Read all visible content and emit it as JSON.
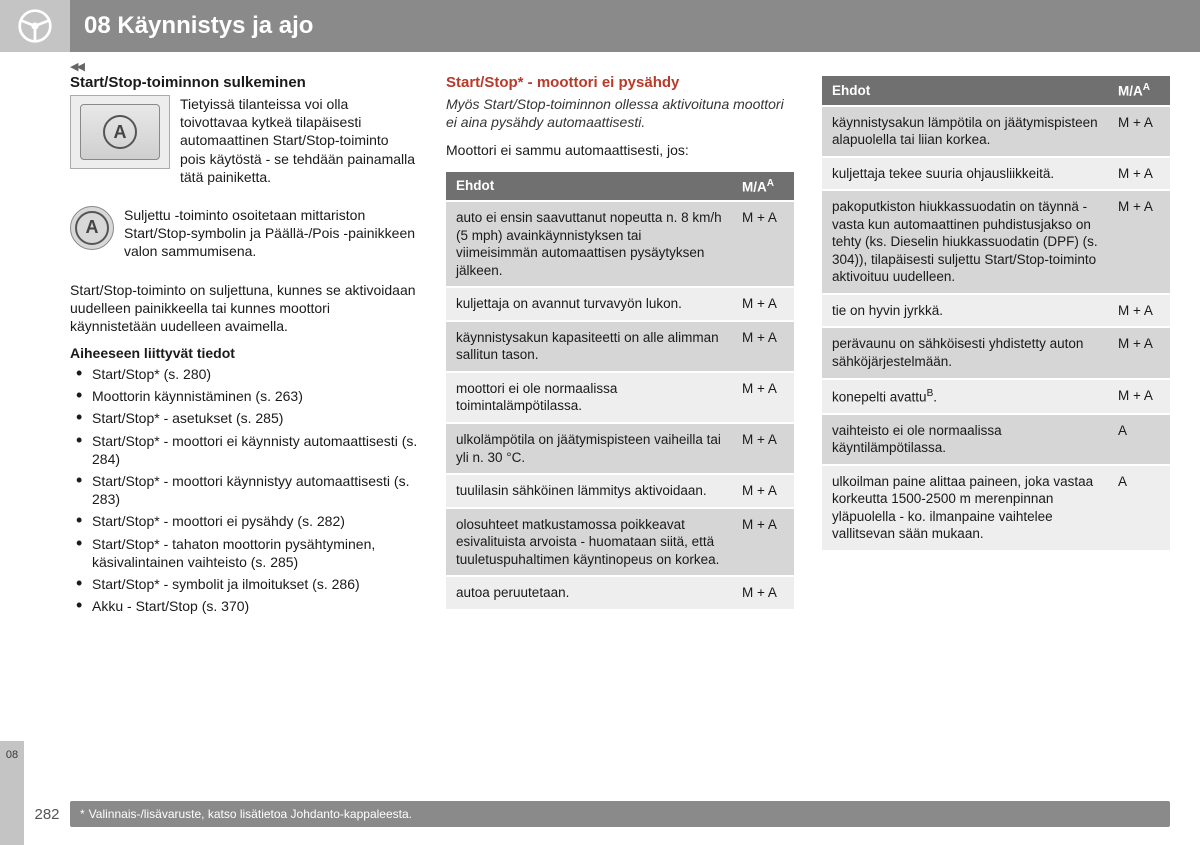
{
  "header": {
    "chapter_num": "08",
    "chapter_title": "Käynnistys ja ajo"
  },
  "side_tab": "08",
  "page_number": "282",
  "footnote": "Valinnais-/lisävaruste, katso lisätietoa Johdanto-kappaleesta.",
  "col1": {
    "h1": "Start/Stop-toiminnon sulkeminen",
    "p1": "Tietyissä tilanteissa voi olla toivottavaa kytkeä tilapäisesti automaattinen Start/Stop-toiminto pois käytöstä - se tehdään painamalla tätä painiketta.",
    "p2": "Suljettu -toiminto osoitetaan mittariston Start/Stop-symbolin ja Päällä-/Pois -painikkeen valon sammumisena.",
    "p3": "Start/Stop-toiminto on suljettuna, kunnes se aktivoidaan uudelleen painikkeella tai kunnes moottori käynnistetään uudelleen avaimella.",
    "related_h": "Aiheeseen liittyvät tiedot",
    "related": [
      "Start/Stop* (s. 280)",
      "Moottorin käynnistäminen (s. 263)",
      "Start/Stop* - asetukset (s. 285)",
      "Start/Stop* - moottori ei käynnisty automaattisesti (s. 284)",
      "Start/Stop* - moottori käynnistyy automaattisesti (s. 283)",
      "Start/Stop* - moottori ei pysähdy (s. 282)",
      "Start/Stop* - tahaton moottorin pysähtyminen, käsivalintainen vaihteisto (s. 285)",
      "Start/Stop* - symbolit ja ilmoitukset (s. 286)",
      "Akku - Start/Stop (s. 370)"
    ]
  },
  "col2": {
    "h1": "Start/Stop* - moottori ei pysähdy",
    "intro": "Myös Start/Stop-toiminnon ollessa aktivoituna moottori ei aina pysähdy automaattisesti.",
    "p1": "Moottori ei sammu automaattisesti, jos:",
    "table_h1": "Ehdot",
    "table_h2": "M/A",
    "rows": [
      {
        "c": "auto ei ensin saavuttanut nopeutta n. 8 km/h (5 mph) avainkäynnistyksen tai viimeisimmän automaattisen pysäytyksen jälkeen.",
        "v": "M + A"
      },
      {
        "c": "kuljettaja on avannut turvavyön lukon.",
        "v": "M + A"
      },
      {
        "c": "käynnistysakun kapasiteetti on alle alimman sallitun tason.",
        "v": "M + A"
      },
      {
        "c": "moottori ei ole normaalissa toimintalämpötilassa.",
        "v": "M + A"
      },
      {
        "c": "ulkolämpötila on jäätymispisteen vaiheilla tai yli n. 30 °C.",
        "v": "M + A"
      },
      {
        "c": "tuulilasin sähköinen lämmitys aktivoidaan.",
        "v": "M + A"
      },
      {
        "c": "olosuhteet matkustamossa poikkeavat esivalituista arvoista - huomataan siitä, että tuuletuspuhaltimen käyntinopeus on korkea.",
        "v": "M + A"
      },
      {
        "c": "autoa peruutetaan.",
        "v": "M + A"
      }
    ]
  },
  "col3": {
    "table_h1": "Ehdot",
    "table_h2": "M/A",
    "rows": [
      {
        "c": "käynnistysakun lämpötila on jäätymispisteen alapuolella tai liian korkea.",
        "v": "M + A"
      },
      {
        "c": "kuljettaja tekee suuria ohjausliikkeitä.",
        "v": "M + A"
      },
      {
        "c": "pakoputkiston hiukkassuodatin on täynnä - vasta kun automaattinen puhdistusjakso on tehty (ks. Dieselin hiukkassuodatin (DPF) (s. 304)), tilapäisesti suljettu Start/Stop-toiminto aktivoituu uudelleen.",
        "v": "M + A"
      },
      {
        "c": "tie on hyvin jyrkkä.",
        "v": "M + A"
      },
      {
        "c": "perävaunu on sähköisesti yhdistetty auton sähköjärjestelmään.",
        "v": "M + A"
      },
      {
        "c": "konepelti avattu",
        "v": "M + A",
        "sup": "B"
      },
      {
        "c": "vaihteisto ei ole normaalissa käyntilämpötilassa.",
        "v": "A"
      },
      {
        "c": "ulkoilman paine alittaa paineen, joka vastaa korkeutta 1500-2500 m merenpinnan yläpuolella - ko. ilmanpaine vaihtelee vallitsevan sään mukaan.",
        "v": "A"
      }
    ]
  }
}
